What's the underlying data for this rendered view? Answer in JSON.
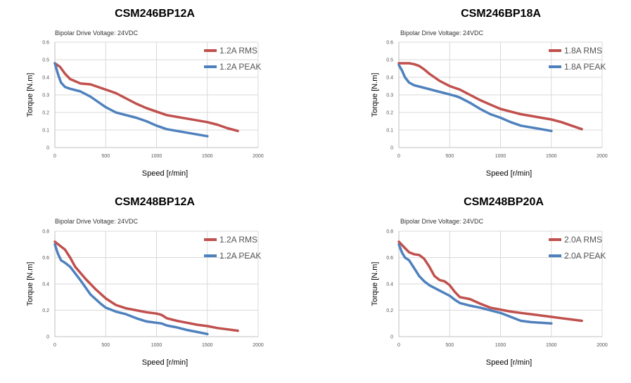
{
  "chart_data": [
    {
      "type": "line",
      "title": "CSM246BP12A",
      "subtitle": "Bipolar Drive  Voltage: 24VDC",
      "xlabel": "Speed [r/min]",
      "ylabel": "Torque [N.m]",
      "xlim": [
        0,
        2000
      ],
      "ylim": [
        0,
        0.6
      ],
      "xticks": [
        0,
        500,
        1000,
        1500,
        2000
      ],
      "yticks": [
        0,
        0.1,
        0.2,
        0.3,
        0.4,
        0.5,
        0.6
      ],
      "ytick_labels": [
        "0",
        "0.1",
        "0.2",
        "0.3",
        "0.4",
        "0.5",
        "0.6"
      ],
      "series": [
        {
          "name": "1.2A RMS",
          "color": "#c0504d",
          "x": [
            0,
            50,
            100,
            150,
            250,
            350,
            450,
            500,
            600,
            700,
            800,
            900,
            1000,
            1100,
            1200,
            1300,
            1400,
            1500,
            1600,
            1700,
            1800
          ],
          "y": [
            0.48,
            0.46,
            0.42,
            0.39,
            0.365,
            0.36,
            0.34,
            0.33,
            0.31,
            0.28,
            0.25,
            0.225,
            0.205,
            0.185,
            0.175,
            0.165,
            0.155,
            0.145,
            0.13,
            0.11,
            0.095
          ]
        },
        {
          "name": "1.2A PEAK",
          "color": "#4f81bd",
          "x": [
            0,
            30,
            60,
            100,
            150,
            250,
            350,
            450,
            500,
            600,
            700,
            800,
            900,
            1000,
            1100,
            1200,
            1300,
            1400,
            1500
          ],
          "y": [
            0.48,
            0.42,
            0.37,
            0.345,
            0.335,
            0.32,
            0.29,
            0.25,
            0.23,
            0.2,
            0.185,
            0.17,
            0.15,
            0.125,
            0.105,
            0.095,
            0.085,
            0.075,
            0.065
          ]
        }
      ]
    },
    {
      "type": "line",
      "title": "CSM246BP18A",
      "subtitle": "Bipolar Drive  Voltage: 24VDC",
      "xlabel": "Speed [r/min]",
      "ylabel": "Torque [N.m]",
      "xlim": [
        0,
        2000
      ],
      "ylim": [
        0,
        0.6
      ],
      "xticks": [
        0,
        500,
        1000,
        1500,
        2000
      ],
      "yticks": [
        0,
        0.1,
        0.2,
        0.3,
        0.4,
        0.5,
        0.6
      ],
      "ytick_labels": [
        "0",
        "0.1",
        "0.2",
        "0.3",
        "0.4",
        "0.5",
        "0.6"
      ],
      "series": [
        {
          "name": "1.8A RMS",
          "color": "#c0504d",
          "x": [
            0,
            50,
            100,
            150,
            200,
            250,
            300,
            400,
            500,
            600,
            700,
            800,
            900,
            1000,
            1100,
            1200,
            1300,
            1400,
            1500,
            1600,
            1700,
            1800
          ],
          "y": [
            0.48,
            0.48,
            0.48,
            0.475,
            0.465,
            0.445,
            0.42,
            0.38,
            0.35,
            0.33,
            0.3,
            0.27,
            0.245,
            0.22,
            0.205,
            0.19,
            0.18,
            0.17,
            0.16,
            0.145,
            0.125,
            0.105
          ]
        },
        {
          "name": "1.8A PEAK",
          "color": "#4f81bd",
          "x": [
            0,
            30,
            60,
            100,
            150,
            250,
            350,
            450,
            550,
            600,
            700,
            800,
            900,
            1000,
            1100,
            1200,
            1300,
            1400,
            1500
          ],
          "y": [
            0.47,
            0.44,
            0.4,
            0.37,
            0.355,
            0.34,
            0.325,
            0.31,
            0.295,
            0.285,
            0.255,
            0.22,
            0.19,
            0.17,
            0.145,
            0.125,
            0.115,
            0.105,
            0.095
          ]
        }
      ]
    },
    {
      "type": "line",
      "title": "CSM248BP12A",
      "subtitle": "Bipolar Drive  Voltage: 24VDC",
      "xlabel": "Speed [r/min]",
      "ylabel": "Torque [N.m]",
      "xlim": [
        0,
        2000
      ],
      "ylim": [
        0,
        0.8
      ],
      "xticks": [
        0,
        500,
        1000,
        1500,
        2000
      ],
      "yticks": [
        0,
        0.2,
        0.4,
        0.6,
        0.8
      ],
      "ytick_labels": [
        "0",
        "0.2",
        "0.4",
        "0.6",
        "0.8"
      ],
      "series": [
        {
          "name": "1.2A RMS",
          "color": "#c0504d",
          "x": [
            0,
            50,
            100,
            150,
            200,
            300,
            400,
            500,
            600,
            700,
            800,
            900,
            1000,
            1050,
            1100,
            1200,
            1300,
            1400,
            1500,
            1600,
            1700,
            1800
          ],
          "y": [
            0.72,
            0.69,
            0.66,
            0.6,
            0.53,
            0.44,
            0.36,
            0.29,
            0.24,
            0.215,
            0.2,
            0.185,
            0.175,
            0.165,
            0.14,
            0.12,
            0.105,
            0.09,
            0.08,
            0.065,
            0.055,
            0.045
          ]
        },
        {
          "name": "1.2A PEAK",
          "color": "#4f81bd",
          "x": [
            0,
            30,
            60,
            100,
            150,
            250,
            350,
            450,
            500,
            600,
            700,
            800,
            900,
            950,
            1000,
            1050,
            1100,
            1200,
            1300,
            1400,
            1500
          ],
          "y": [
            0.7,
            0.63,
            0.58,
            0.56,
            0.53,
            0.43,
            0.32,
            0.25,
            0.22,
            0.19,
            0.17,
            0.14,
            0.115,
            0.11,
            0.105,
            0.1,
            0.085,
            0.07,
            0.05,
            0.035,
            0.02
          ]
        }
      ]
    },
    {
      "type": "line",
      "title": "CSM248BP20A",
      "subtitle": "Bipolar Drive  Voltage: 24VDC",
      "xlabel": "Speed [r/min]",
      "ylabel": "Torque [N.m]",
      "xlim": [
        0,
        2000
      ],
      "ylim": [
        0,
        0.8
      ],
      "xticks": [
        0,
        500,
        1000,
        1500,
        2000
      ],
      "yticks": [
        0,
        0.2,
        0.4,
        0.6,
        0.8
      ],
      "ytick_labels": [
        "0",
        "0.2",
        "0.4",
        "0.6",
        "0.8"
      ],
      "series": [
        {
          "name": "2.0A RMS",
          "color": "#c0504d",
          "x": [
            0,
            50,
            100,
            150,
            200,
            250,
            300,
            350,
            400,
            450,
            500,
            550,
            600,
            700,
            800,
            900,
            1000,
            1100,
            1200,
            1300,
            1400,
            1500,
            1600,
            1700,
            1800
          ],
          "y": [
            0.72,
            0.68,
            0.64,
            0.625,
            0.62,
            0.59,
            0.53,
            0.46,
            0.43,
            0.42,
            0.39,
            0.34,
            0.3,
            0.285,
            0.25,
            0.22,
            0.205,
            0.19,
            0.18,
            0.17,
            0.16,
            0.15,
            0.14,
            0.13,
            0.12
          ]
        },
        {
          "name": "2.0A PEAK",
          "color": "#4f81bd",
          "x": [
            0,
            30,
            60,
            100,
            150,
            200,
            250,
            300,
            400,
            500,
            550,
            600,
            700,
            800,
            900,
            1000,
            1100,
            1200,
            1300,
            1400,
            1500
          ],
          "y": [
            0.7,
            0.64,
            0.6,
            0.58,
            0.52,
            0.46,
            0.42,
            0.39,
            0.35,
            0.31,
            0.28,
            0.255,
            0.235,
            0.22,
            0.2,
            0.18,
            0.15,
            0.12,
            0.11,
            0.105,
            0.1
          ]
        }
      ]
    }
  ]
}
